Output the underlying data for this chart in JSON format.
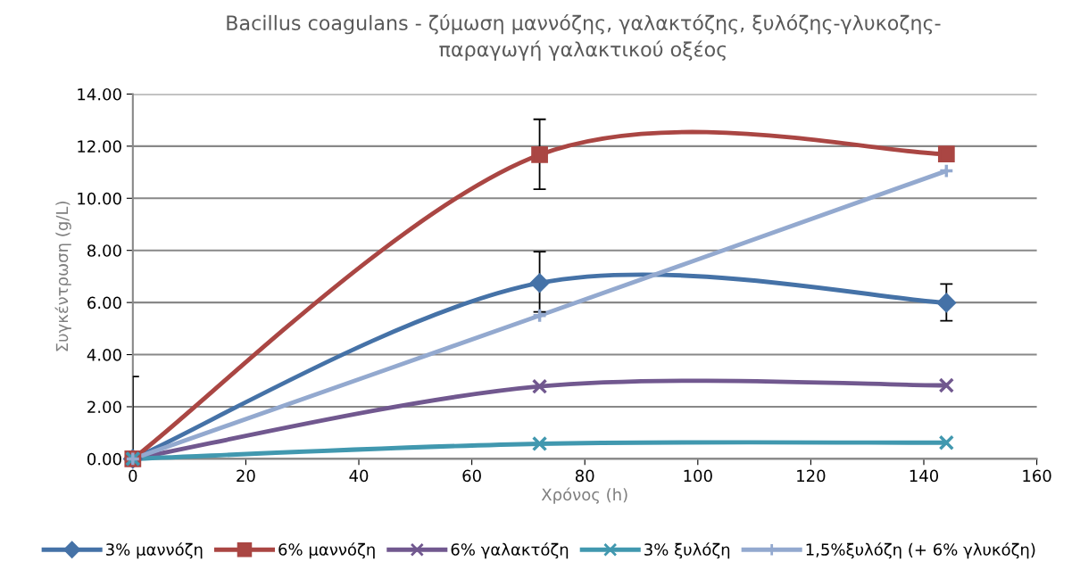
{
  "chart_data": {
    "type": "line",
    "title": "Bacillus coagulans - ζύμωση μαννόζης, γαλακτόζης, ξυλόζης-γλυκοζης-\nπαραγωγή γαλακτικού οξέος",
    "xlabel": "Χρόνος (h)",
    "ylabel": "Συγκέντρωση (g/L)",
    "x": [
      0,
      72,
      144
    ],
    "series": [
      {
        "name": "3% μαννόζη",
        "color": "#4572a7",
        "marker": "diamond",
        "values": [
          0,
          6.75,
          5.99
        ],
        "errors": [
          [
            0,
            3.16
          ],
          [
            5.64,
            7.95
          ],
          [
            5.3,
            6.71
          ]
        ]
      },
      {
        "name": "6% μαννόζη",
        "color": "#aa4643",
        "marker": "square",
        "values": [
          0,
          11.67,
          11.7
        ],
        "errors": [
          null,
          [
            10.35,
            13.03
          ],
          null
        ]
      },
      {
        "name": "6% γαλακτόζη",
        "color": "#71588f",
        "marker": "cross",
        "values": [
          0,
          2.78,
          2.82
        ]
      },
      {
        "name": "3% ξυλόζη",
        "color": "#4198af",
        "marker": "cross",
        "values": [
          0,
          0.58,
          0.62
        ]
      },
      {
        "name": "1,5%ξυλόζη (+ 6% γλυκόζη)",
        "color": "#93a9cf",
        "marker": "plus",
        "values": [
          0,
          5.5,
          11.05
        ]
      }
    ],
    "xlim": [
      0,
      160
    ],
    "xticks": [
      0,
      20,
      40,
      60,
      80,
      100,
      120,
      140,
      160
    ],
    "ylim": [
      0,
      14
    ],
    "yticks": [
      {
        "value": 0,
        "label": "0.00"
      },
      {
        "value": 2,
        "label": "2.00"
      },
      {
        "value": 4,
        "label": "4.00"
      },
      {
        "value": 6,
        "label": "6.00"
      },
      {
        "value": 8,
        "label": "8.00"
      },
      {
        "value": 10,
        "label": "10.00"
      },
      {
        "value": 12,
        "label": "12.00"
      },
      {
        "value": 14,
        "label": "14.00"
      }
    ],
    "grid": "y",
    "legend": "bottom",
    "line_style": "solid"
  }
}
